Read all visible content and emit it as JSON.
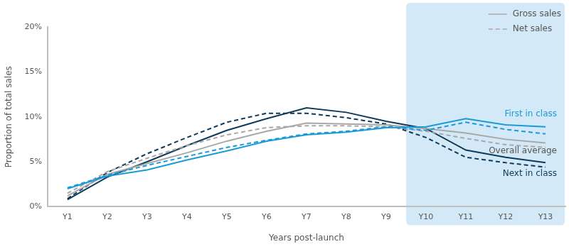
{
  "chart_data": {
    "type": "line",
    "x_label": "Years post-launch",
    "y_label": "Proportion of total sales",
    "categories": [
      "Y1",
      "Y2",
      "Y3",
      "Y4",
      "Y5",
      "Y6",
      "Y7",
      "Y8",
      "Y9",
      "Y10",
      "Y11",
      "Y12",
      "Y13"
    ],
    "series": [
      {
        "name": "First in class",
        "color": "#1a9ad6",
        "line_style": "solid",
        "values": [
          2.0,
          3.4,
          4.1,
          5.2,
          6.2,
          7.3,
          8.0,
          8.3,
          8.8,
          8.9,
          9.8,
          9.1,
          8.9
        ]
      },
      {
        "name": "First in class",
        "color": "#1a9ad6",
        "line_style": "dashed",
        "values": [
          2.1,
          3.5,
          4.6,
          5.6,
          6.6,
          7.4,
          8.1,
          8.4,
          8.9,
          8.5,
          9.4,
          8.6,
          8.1
        ]
      },
      {
        "name": "Overall average",
        "color": "#a8a8a8",
        "line_style": "solid",
        "values": [
          1.2,
          3.6,
          4.8,
          6.0,
          7.3,
          8.4,
          9.3,
          9.2,
          9.1,
          8.7,
          8.2,
          7.5,
          7.1
        ]
      },
      {
        "name": "Overall average",
        "color": "#a8a8a8",
        "line_style": "dashed",
        "values": [
          1.5,
          3.9,
          5.4,
          6.8,
          8.0,
          8.8,
          9.0,
          9.0,
          8.9,
          8.4,
          7.6,
          6.9,
          6.6
        ]
      },
      {
        "name": "Next in class",
        "color": "#0e3a5c",
        "line_style": "solid",
        "values": [
          0.8,
          3.3,
          5.0,
          6.8,
          8.5,
          9.8,
          11.0,
          10.5,
          9.5,
          8.7,
          6.3,
          5.5,
          4.9
        ]
      },
      {
        "name": "Next in class",
        "color": "#0e3a5c",
        "line_style": "dashed",
        "values": [
          0.9,
          3.8,
          5.9,
          7.7,
          9.4,
          10.4,
          10.4,
          9.9,
          9.2,
          7.7,
          5.5,
          4.9,
          4.4
        ]
      }
    ],
    "legend_entries": [
      {
        "name": "Gross sales",
        "color": "#b8b8b8",
        "line_style": "solid"
      },
      {
        "name": "Net sales",
        "color": "#b8b8b8",
        "line_style": "dashed"
      }
    ],
    "legend": "top right",
    "shaded_range": [
      "Y10",
      "Y13"
    ],
    "ylim": [
      0,
      20
    ],
    "yticks": [
      {
        "value": 0,
        "label": "0%"
      },
      {
        "value": 5,
        "label": "5%"
      },
      {
        "value": 10,
        "label": "10%"
      },
      {
        "value": 15,
        "label": "15%"
      },
      {
        "value": 20,
        "label": "20%"
      }
    ],
    "grid": false
  }
}
